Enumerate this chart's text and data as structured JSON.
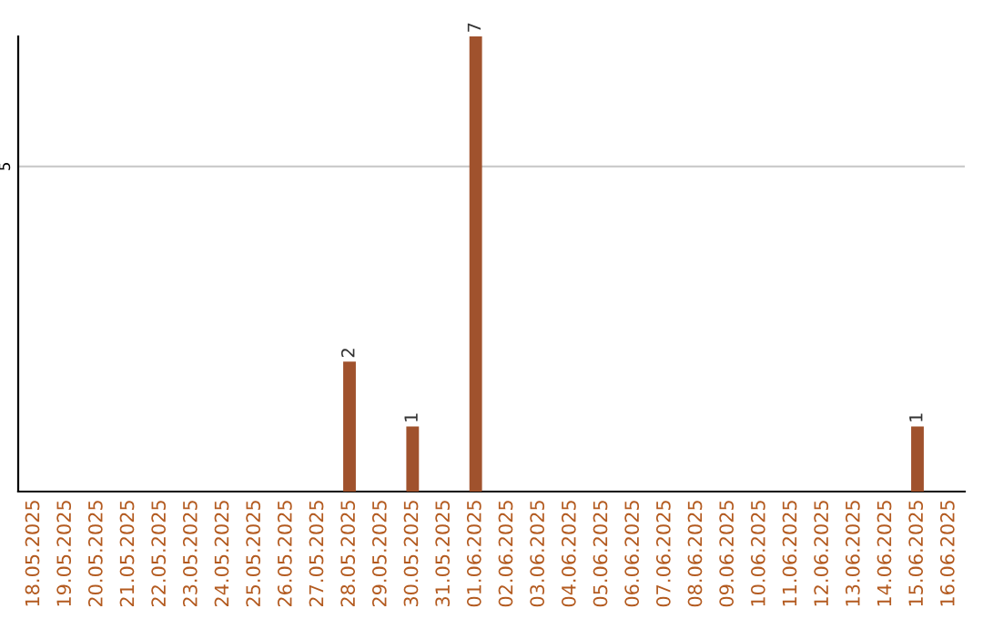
{
  "chart_data": {
    "type": "bar",
    "categories": [
      "18.05.2025",
      "19.05.2025",
      "20.05.2025",
      "21.05.2025",
      "22.05.2025",
      "23.05.2025",
      "24.05.2025",
      "25.05.2025",
      "26.05.2025",
      "27.05.2025",
      "28.05.2025",
      "29.05.2025",
      "30.05.2025",
      "31.05.2025",
      "01.06.2025",
      "02.06.2025",
      "03.06.2025",
      "04.06.2025",
      "05.06.2025",
      "06.06.2025",
      "07.06.2025",
      "08.06.2025",
      "09.06.2025",
      "10.06.2025",
      "11.06.2025",
      "12.06.2025",
      "13.06.2025",
      "14.06.2025",
      "15.06.2025",
      "16.06.2025"
    ],
    "values": [
      0,
      0,
      0,
      0,
      0,
      0,
      0,
      0,
      0,
      0,
      2,
      0,
      1,
      0,
      7,
      0,
      0,
      0,
      0,
      0,
      0,
      0,
      0,
      0,
      0,
      0,
      0,
      0,
      1,
      0
    ],
    "value_labels": [
      null,
      null,
      null,
      null,
      null,
      null,
      null,
      null,
      null,
      null,
      "2",
      null,
      "1",
      null,
      "7",
      null,
      null,
      null,
      null,
      null,
      null,
      null,
      null,
      null,
      null,
      null,
      null,
      null,
      "1",
      null
    ],
    "color": "#a0522d",
    "ylim": [
      0,
      7
    ],
    "yticks": [
      5
    ],
    "grid": "y"
  }
}
